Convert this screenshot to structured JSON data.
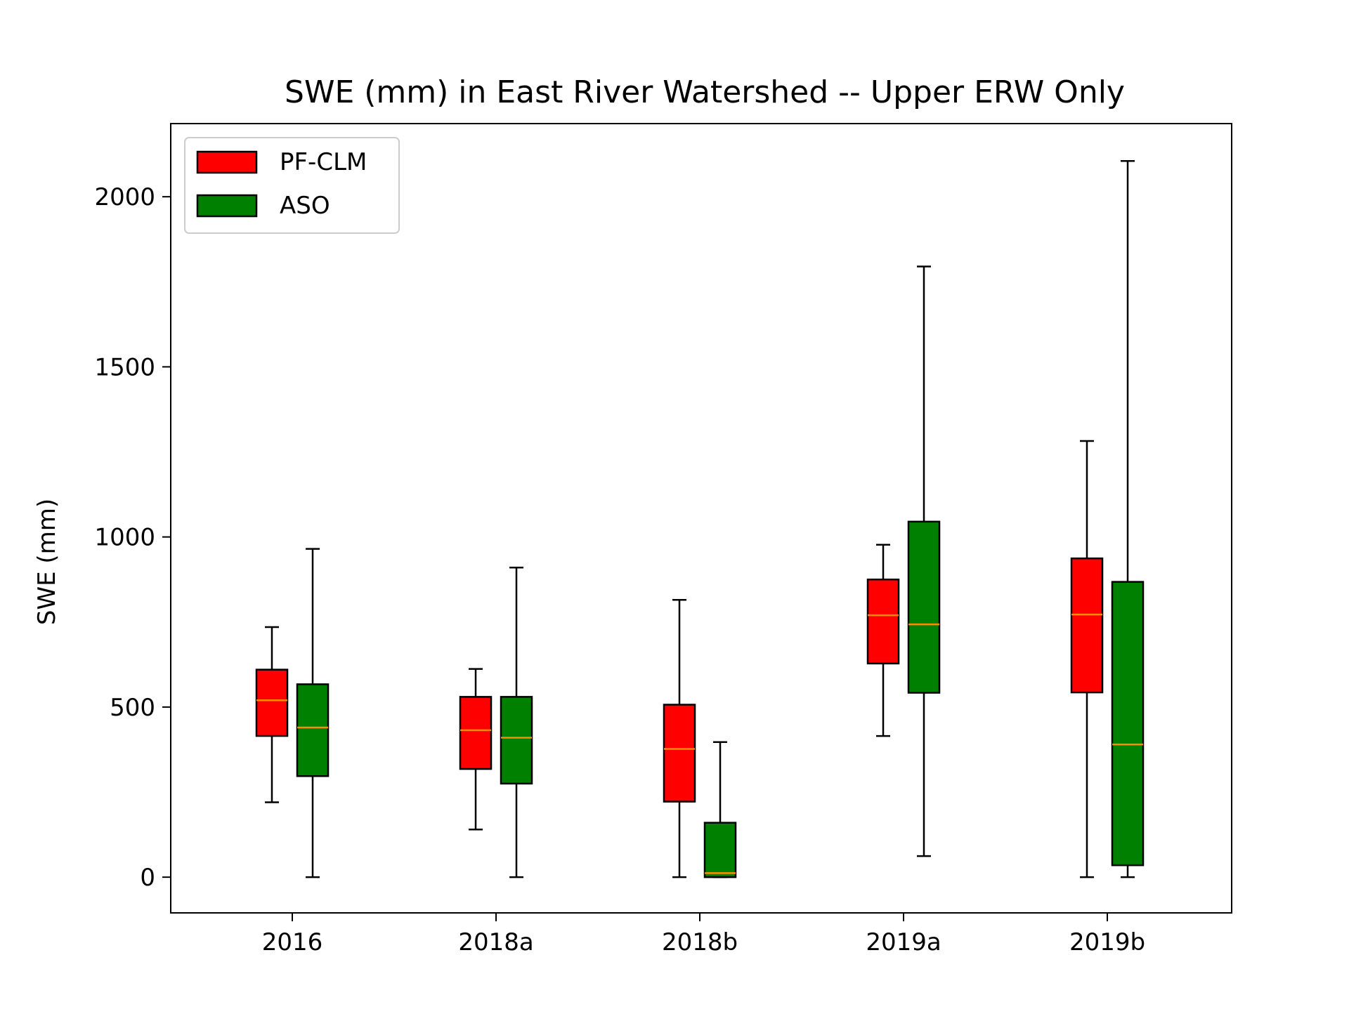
{
  "chart_data": {
    "type": "box",
    "title": "SWE (mm) in East River Watershed -- Upper ERW Only",
    "xlabel": "",
    "ylabel": "SWE (mm)",
    "ylim": [
      -105,
      2215
    ],
    "yticks": [
      0,
      500,
      1000,
      1500,
      2000
    ],
    "categories": [
      "2016",
      "2018a",
      "2018b",
      "2019a",
      "2019b"
    ],
    "legend_position": "upper-left",
    "grid": false,
    "median_color": "#ff8c00",
    "series": [
      {
        "name": "PF-CLM",
        "color": "#ff0000",
        "boxes": [
          {
            "whisker_low": 220,
            "q1": 415,
            "median": 520,
            "q3": 610,
            "whisker_high": 735
          },
          {
            "whisker_low": 140,
            "q1": 318,
            "median": 432,
            "q3": 530,
            "whisker_high": 612
          },
          {
            "whisker_low": 0,
            "q1": 222,
            "median": 377,
            "q3": 507,
            "whisker_high": 815
          },
          {
            "whisker_low": 415,
            "q1": 628,
            "median": 770,
            "q3": 875,
            "whisker_high": 977
          },
          {
            "whisker_low": 0,
            "q1": 543,
            "median": 772,
            "q3": 937,
            "whisker_high": 1282
          }
        ]
      },
      {
        "name": "ASO",
        "color": "#008000",
        "boxes": [
          {
            "whisker_low": 0,
            "q1": 297,
            "median": 440,
            "q3": 567,
            "whisker_high": 965
          },
          {
            "whisker_low": 0,
            "q1": 275,
            "median": 410,
            "q3": 530,
            "whisker_high": 910
          },
          {
            "whisker_low": 0,
            "q1": 0,
            "median": 12,
            "q3": 160,
            "whisker_high": 397
          },
          {
            "whisker_low": 62,
            "q1": 542,
            "median": 743,
            "q3": 1045,
            "whisker_high": 1795
          },
          {
            "whisker_low": 0,
            "q1": 35,
            "median": 390,
            "q3": 868,
            "whisker_high": 2105
          }
        ]
      }
    ]
  }
}
